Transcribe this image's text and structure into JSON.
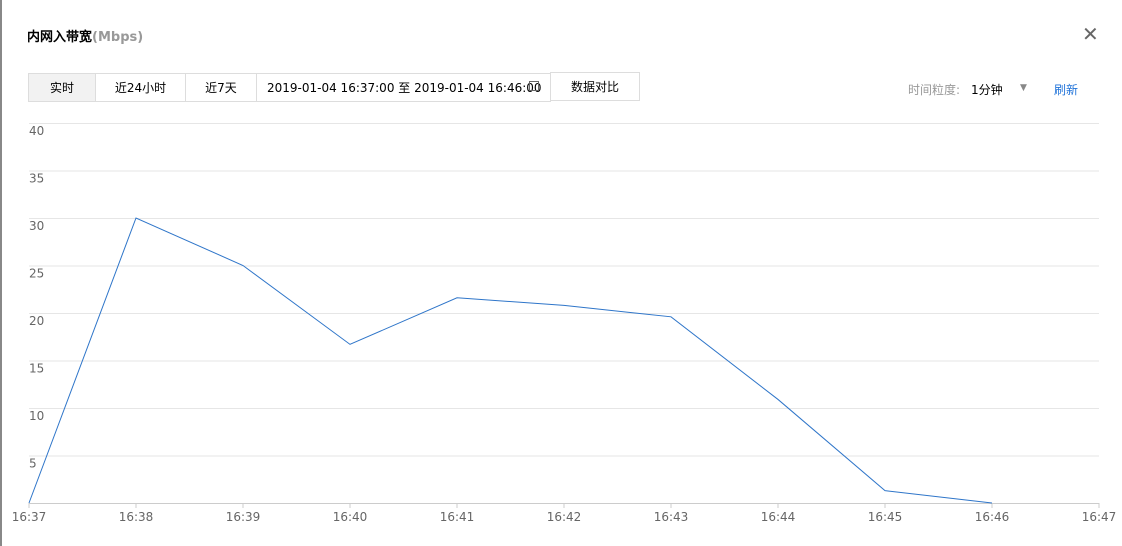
{
  "header": {
    "title": "内网入带宽",
    "unit": "(Mbps)"
  },
  "toolbar": {
    "tabs": [
      "实时",
      "近24小时",
      "近7天"
    ],
    "date_range": "2019-01-04 16:37:00 至 2019-01-04 16:46:00",
    "compare": "数据对比",
    "granularity_label": "时间粒度:",
    "granularity_value": "1分钟",
    "refresh": "刷新"
  },
  "chart_data": {
    "type": "line",
    "categories": [
      "16:37",
      "16:38",
      "16:39",
      "16:40",
      "16:41",
      "16:42",
      "16:43",
      "16:44",
      "16:45",
      "16:46",
      "16:47"
    ],
    "values": [
      0,
      30,
      25,
      16.7,
      21.6,
      20.8,
      19.6,
      10.9,
      1.3,
      0,
      null
    ],
    "color": "#2e75c9",
    "ylim": [
      0,
      40
    ],
    "yticks": [
      5,
      10,
      15,
      20,
      25,
      30,
      35,
      40
    ],
    "grid": true
  }
}
